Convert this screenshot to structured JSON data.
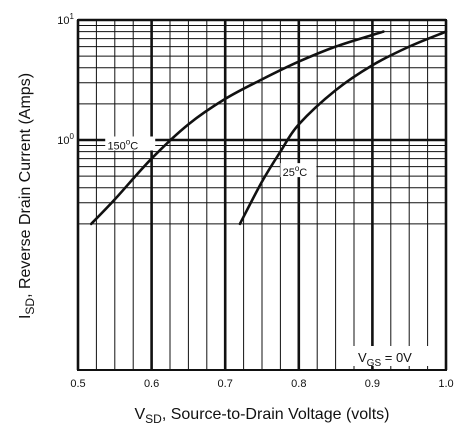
{
  "chart_data": {
    "type": "line",
    "xlabel_main": "V",
    "xlabel_sub": "SD",
    "xlabel_rest": ", Source-to-Drain Voltage (volts)",
    "ylabel_main": "I",
    "ylabel_sub": "SD",
    "ylabel_rest": ", Reverse Drain Current (Amps)",
    "x_ticks": [
      "0.5",
      "0.6",
      "0.7",
      "0.8",
      "0.9",
      "1.0"
    ],
    "y_ticks": [
      {
        "base": "10",
        "exp": "1"
      },
      {
        "base": "10",
        "exp": "0"
      }
    ],
    "xlim": [
      0.5,
      1.0
    ],
    "ylim": [
      0.2,
      10
    ],
    "y_scale": "log",
    "grid": true,
    "series": [
      {
        "name": "150°C",
        "label_parts": {
          "num": "150",
          "sup": "o",
          "unit": "C"
        },
        "points": [
          [
            0.518,
            0.2
          ],
          [
            0.55,
            0.32
          ],
          [
            0.6,
            0.7
          ],
          [
            0.65,
            1.35
          ],
          [
            0.7,
            2.2
          ],
          [
            0.75,
            3.2
          ],
          [
            0.8,
            4.5
          ],
          [
            0.85,
            6.0
          ],
          [
            0.9,
            7.5
          ],
          [
            0.915,
            8.0
          ]
        ]
      },
      {
        "name": "25°C",
        "label_parts": {
          "num": "25",
          "sup": "o",
          "unit": "C"
        },
        "points": [
          [
            0.72,
            0.2
          ],
          [
            0.75,
            0.45
          ],
          [
            0.775,
            0.8
          ],
          [
            0.8,
            1.35
          ],
          [
            0.85,
            2.6
          ],
          [
            0.9,
            4.2
          ],
          [
            0.95,
            6.0
          ],
          [
            1.0,
            8.0
          ]
        ]
      }
    ],
    "annotation": {
      "main": "V",
      "sub": "GS",
      "rest": " =  0V"
    }
  }
}
